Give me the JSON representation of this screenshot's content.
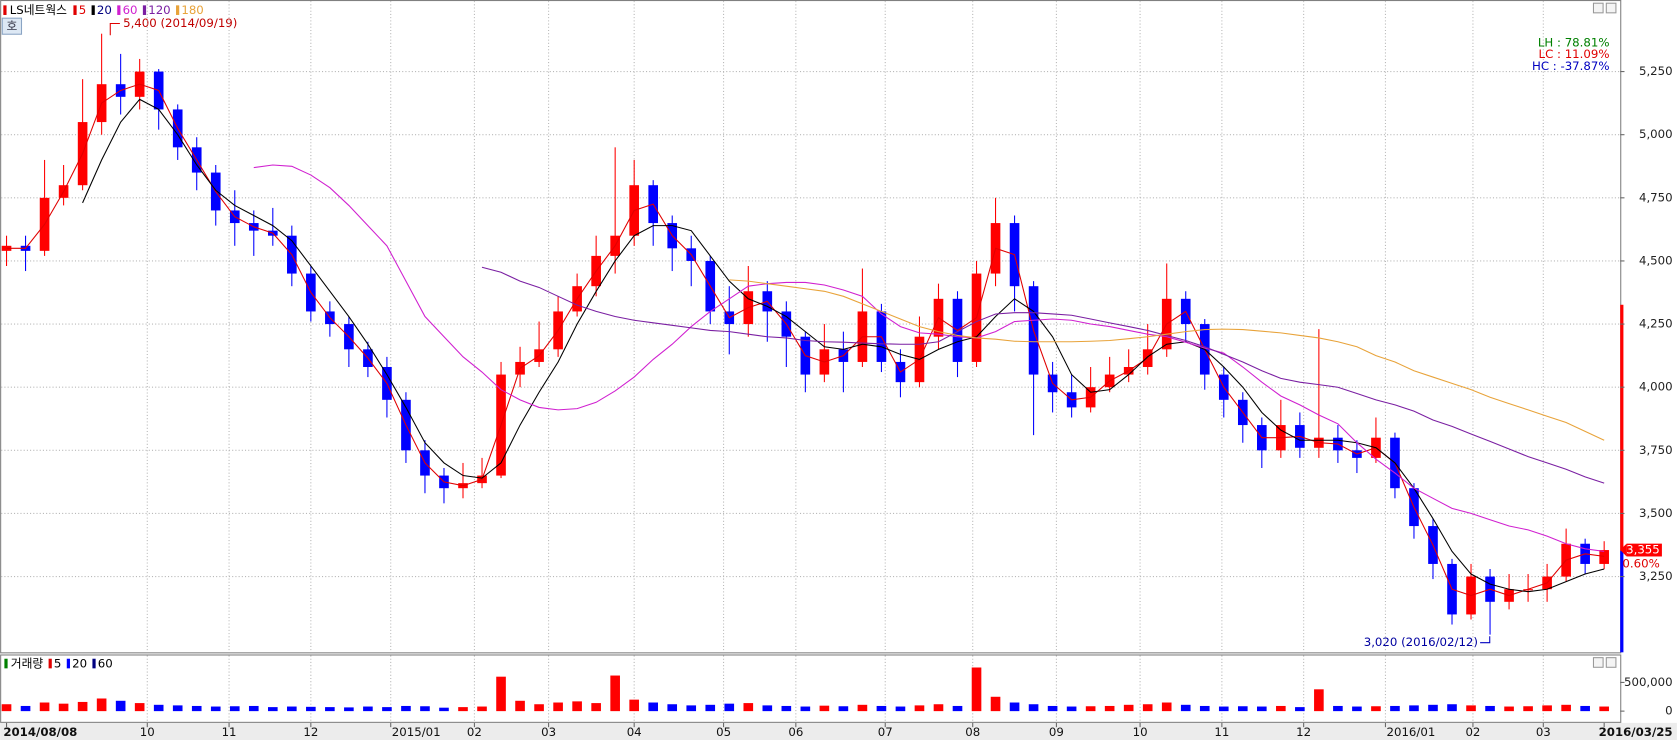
{
  "chart_data": {
    "type": "candlestick",
    "title": "LS네트웍스",
    "up_color": "#ff0000",
    "down_color": "#0000ff",
    "open": [
      4540,
      4560,
      4540,
      4750,
      4800,
      5050,
      5200,
      5150,
      5250,
      5100,
      4950,
      4850,
      4700,
      4650,
      4620,
      4600,
      4450,
      4300,
      4250,
      4150,
      4080,
      3950,
      3750,
      3650,
      3600,
      3620,
      3650,
      4050,
      4100,
      4150,
      4300,
      4400,
      4520,
      4600,
      4800,
      4650,
      4550,
      4500,
      4300,
      4250,
      4380,
      4300,
      4200,
      4050,
      4150,
      4100,
      4300,
      4100,
      4020,
      4200,
      4350,
      4100,
      4450,
      4650,
      4400,
      4050,
      3980,
      3920,
      4000,
      4050,
      4080,
      4150,
      4350,
      4250,
      4050,
      3950,
      3850,
      3750,
      3850,
      3760,
      3800,
      3750,
      3720,
      3800,
      3600,
      3450,
      3300,
      3100,
      3250,
      3150,
      3200,
      3200,
      3250,
      3380,
      3300
    ],
    "high": [
      4600,
      4600,
      4900,
      4880,
      5220,
      5400,
      5320,
      5300,
      5260,
      5120,
      4990,
      4880,
      4780,
      4700,
      4710,
      4640,
      4480,
      4340,
      4280,
      4180,
      4120,
      3980,
      3790,
      3680,
      3700,
      3720,
      4100,
      4160,
      4260,
      4360,
      4450,
      4600,
      4950,
      4900,
      4820,
      4680,
      4600,
      4520,
      4400,
      4480,
      4420,
      4340,
      4220,
      4250,
      4220,
      4470,
      4330,
      4150,
      4280,
      4410,
      4380,
      4500,
      4750,
      4680,
      4420,
      4100,
      4050,
      4080,
      4120,
      4150,
      4250,
      4490,
      4380,
      4270,
      4080,
      3980,
      3880,
      3950,
      3900,
      4230,
      3850,
      3790,
      3880,
      3820,
      3620,
      3480,
      3320,
      3300,
      3280,
      3260,
      3260,
      3300,
      3440,
      3400,
      3390
    ],
    "low": [
      4480,
      4460,
      4520,
      4720,
      4780,
      5000,
      5080,
      5100,
      5020,
      4900,
      4780,
      4640,
      4560,
      4520,
      4560,
      4400,
      4260,
      4200,
      4080,
      4040,
      3880,
      3700,
      3580,
      3540,
      3560,
      3600,
      3640,
      4000,
      4080,
      4120,
      4280,
      4360,
      4450,
      4560,
      4560,
      4460,
      4400,
      4250,
      4130,
      4200,
      4180,
      4080,
      3980,
      4020,
      3980,
      4080,
      4060,
      3960,
      4000,
      4150,
      4040,
      4080,
      4400,
      4300,
      3810,
      3900,
      3880,
      3900,
      3980,
      4020,
      4050,
      4120,
      4180,
      3990,
      3880,
      3780,
      3680,
      3720,
      3720,
      3720,
      3700,
      3660,
      3700,
      3560,
      3400,
      3240,
      3060,
      3080,
      3020,
      3120,
      3150,
      3150,
      3230,
      3260,
      3280
    ],
    "close": [
      4560,
      4540,
      4750,
      4800,
      5050,
      5200,
      5150,
      5250,
      5100,
      4950,
      4850,
      4700,
      4650,
      4620,
      4600,
      4450,
      4300,
      4250,
      4150,
      4080,
      3950,
      3750,
      3650,
      3600,
      3620,
      3650,
      4050,
      4100,
      4150,
      4300,
      4400,
      4520,
      4600,
      4800,
      4650,
      4550,
      4500,
      4300,
      4250,
      4380,
      4300,
      4200,
      4050,
      4150,
      4100,
      4300,
      4100,
      4020,
      4200,
      4350,
      4100,
      4450,
      4650,
      4400,
      4050,
      3980,
      3920,
      4000,
      4050,
      4080,
      4150,
      4350,
      4250,
      4050,
      3950,
      3850,
      3750,
      3850,
      3760,
      3800,
      3750,
      3720,
      3800,
      3600,
      3450,
      3300,
      3100,
      3250,
      3150,
      3200,
      3200,
      3250,
      3380,
      3300,
      3355
    ],
    "series": [
      {
        "name": "5",
        "color": "#e00000",
        "values": [
          4550,
          4550,
          4645,
          4775,
          4925,
          5125,
          5175,
          5200,
          5175,
          5025,
          4900,
          4775,
          4675,
          4635,
          4610,
          4525,
          4375,
          4275,
          4200,
          4115,
          4015,
          3850,
          3700,
          3625,
          3610,
          3635,
          3850,
          4075,
          4125,
          4225,
          4350,
          4460,
          4560,
          4700,
          4725,
          4600,
          4525,
          4400,
          4275,
          4315,
          4340,
          4250,
          4125,
          4100,
          4125,
          4200,
          4200,
          4060,
          4110,
          4275,
          4225,
          4275,
          4550,
          4525,
          4225,
          4015,
          3950,
          3960,
          4025,
          4065,
          4115,
          4250,
          4300,
          4150,
          4000,
          3900,
          3800,
          3800,
          3805,
          3780,
          3775,
          3735,
          3760,
          3700,
          3525,
          3375,
          3200,
          3175,
          3200,
          3175,
          3200,
          3225,
          3315,
          3340,
          3330
        ]
      },
      {
        "name": "20",
        "color": "#000000",
        "values": [
          null,
          null,
          null,
          null,
          4730,
          4900,
          5050,
          5140,
          5100,
          5000,
          4880,
          4780,
          4720,
          4680,
          4640,
          4580,
          4480,
          4380,
          4280,
          4170,
          4050,
          3920,
          3780,
          3700,
          3650,
          3640,
          3700,
          3850,
          3980,
          4100,
          4250,
          4380,
          4500,
          4600,
          4640,
          4640,
          4620,
          4520,
          4420,
          4350,
          4320,
          4280,
          4220,
          4160,
          4150,
          4170,
          4160,
          4130,
          4110,
          4150,
          4180,
          4200,
          4280,
          4350,
          4300,
          4200,
          4050,
          3980,
          3990,
          4050,
          4120,
          4170,
          4180,
          4150,
          4080,
          4000,
          3900,
          3830,
          3790,
          3790,
          3790,
          3780,
          3760,
          3700,
          3600,
          3480,
          3350,
          3260,
          3220,
          3200,
          3190,
          3200,
          3230,
          3260,
          3280
        ]
      },
      {
        "name": "60",
        "color": "#d020d0",
        "values": [
          null,
          null,
          null,
          null,
          null,
          null,
          null,
          null,
          null,
          null,
          null,
          null,
          null,
          4870,
          4880,
          4875,
          4840,
          4790,
          4720,
          4640,
          4560,
          4420,
          4280,
          4200,
          4120,
          4060,
          3990,
          3950,
          3920,
          3910,
          3915,
          3940,
          3985,
          4040,
          4110,
          4170,
          4240,
          4300,
          4350,
          4400,
          4410,
          4415,
          4415,
          4405,
          4385,
          4360,
          4290,
          4240,
          4215,
          4210,
          4200,
          4195,
          4220,
          4260,
          4265,
          4270,
          4265,
          4250,
          4240,
          4225,
          4210,
          4200,
          4178,
          4155,
          4135,
          4080,
          4020,
          3965,
          3930,
          3890,
          3855,
          3780,
          3715,
          3660,
          3600,
          3560,
          3520,
          3500,
          3475,
          3450,
          3435,
          3410,
          3380,
          3360,
          3350
        ]
      },
      {
        "name": "120",
        "color": "#7a1fa2",
        "values": [
          null,
          null,
          null,
          null,
          null,
          null,
          null,
          null,
          null,
          null,
          null,
          null,
          null,
          null,
          null,
          null,
          null,
          null,
          null,
          null,
          null,
          null,
          null,
          null,
          null,
          4475,
          4455,
          4420,
          4395,
          4360,
          4325,
          4300,
          4280,
          4265,
          4255,
          4245,
          4235,
          4225,
          4220,
          4210,
          4200,
          4195,
          4185,
          4180,
          4178,
          4175,
          4172,
          4170,
          4170,
          4180,
          4220,
          4260,
          4290,
          4295,
          4295,
          4290,
          4285,
          4270,
          4255,
          4240,
          4225,
          4205,
          4185,
          4160,
          4130,
          4100,
          4065,
          4035,
          4020,
          4010,
          4000,
          3975,
          3950,
          3930,
          3905,
          3870,
          3845,
          3815,
          3785,
          3755,
          3725,
          3700,
          3675,
          3645,
          3620
        ]
      },
      {
        "name": "180",
        "color": "#e8a33a",
        "values": [
          null,
          null,
          null,
          null,
          null,
          null,
          null,
          null,
          null,
          null,
          null,
          null,
          null,
          null,
          null,
          null,
          null,
          null,
          null,
          null,
          null,
          null,
          null,
          null,
          null,
          null,
          null,
          null,
          null,
          null,
          null,
          null,
          null,
          null,
          null,
          null,
          null,
          null,
          4425,
          4420,
          4410,
          4400,
          4390,
          4380,
          4360,
          4330,
          4300,
          4270,
          4240,
          4220,
          4205,
          4195,
          4190,
          4182,
          4180,
          4180,
          4180,
          4182,
          4185,
          4192,
          4200,
          4210,
          4220,
          4228,
          4230,
          4228,
          4222,
          4215,
          4205,
          4195,
          4180,
          4160,
          4125,
          4100,
          4065,
          4040,
          4015,
          3990,
          3960,
          3935,
          3910,
          3885,
          3860,
          3825,
          3790
        ]
      }
    ],
    "ylim": [
      2950,
      5525
    ],
    "yticks": [
      {
        "value": 3250,
        "label": "3,250"
      },
      {
        "value": 3500,
        "label": "3,500"
      },
      {
        "value": 3750,
        "label": "3,750"
      },
      {
        "value": 4000,
        "label": "4,000"
      },
      {
        "value": 4250,
        "label": "4,250"
      },
      {
        "value": 4500,
        "label": "4,500"
      },
      {
        "value": 4750,
        "label": "4,750"
      },
      {
        "value": 5000,
        "label": "5,000"
      },
      {
        "value": 5250,
        "label": "5,250"
      }
    ],
    "xlim": [
      0,
      84
    ],
    "xticks": [
      {
        "value": 0,
        "label": "2014/08/08"
      },
      {
        "value": 7.4,
        "label": "10"
      },
      {
        "value": 11.7,
        "label": "11"
      },
      {
        "value": 16,
        "label": "12"
      },
      {
        "value": 20.2,
        "label": "2015/01"
      },
      {
        "value": 24.6,
        "label": "02"
      },
      {
        "value": 28.5,
        "label": "03"
      },
      {
        "value": 33,
        "label": "04"
      },
      {
        "value": 37.7,
        "label": "05"
      },
      {
        "value": 41.5,
        "label": "06"
      },
      {
        "value": 46.2,
        "label": "07"
      },
      {
        "value": 50.8,
        "label": "08"
      },
      {
        "value": 55.2,
        "label": "09"
      },
      {
        "value": 59.6,
        "label": "10"
      },
      {
        "value": 63.9,
        "label": "11"
      },
      {
        "value": 68.2,
        "label": "12"
      },
      {
        "value": 72.5,
        "label": "2016/01"
      },
      {
        "value": 77.1,
        "label": "02"
      },
      {
        "value": 80.8,
        "label": "03"
      },
      {
        "value": 84,
        "label": "2016/03/25"
      }
    ],
    "grid": true,
    "annotations": [
      "5,400 (2014/09/19)",
      "3,020 (2016/02/12)"
    ],
    "stats": [
      "LH :  78.81%",
      "LC :  11.09%",
      "HC : -37.87%"
    ],
    "last_price": {
      "value": 3355,
      "label": "3,355"
    },
    "change": "0.60%",
    "button": "호",
    "volume": {
      "title": "거래량",
      "legend": [
        {
          "name": "5",
          "color": "#e00000"
        },
        {
          "name": "20",
          "color": "#0000ff"
        },
        {
          "name": "60",
          "color": "#000080"
        }
      ],
      "values": [
        120000,
        90000,
        150000,
        130000,
        160000,
        220000,
        180000,
        140000,
        110000,
        100000,
        90000,
        80000,
        85000,
        90000,
        70000,
        80000,
        75000,
        70000,
        65000,
        80000,
        70000,
        90000,
        85000,
        60000,
        70000,
        80000,
        600000,
        180000,
        120000,
        150000,
        170000,
        140000,
        620000,
        200000,
        150000,
        120000,
        100000,
        110000,
        130000,
        140000,
        100000,
        90000,
        80000,
        95000,
        85000,
        110000,
        90000,
        80000,
        100000,
        120000,
        90000,
        760000,
        250000,
        150000,
        120000,
        90000,
        80000,
        85000,
        90000,
        110000,
        120000,
        150000,
        110000,
        90000,
        80000,
        85000,
        80000,
        90000,
        70000,
        380000,
        90000,
        80000,
        85000,
        90000,
        100000,
        110000,
        120000,
        100000,
        90000,
        80000,
        85000,
        100000,
        110000,
        90000,
        80000
      ],
      "ylim": [
        0,
        950000
      ],
      "yticks": [
        0,
        {
          "value": 500000,
          "label": "500,000"
        }
      ]
    }
  }
}
